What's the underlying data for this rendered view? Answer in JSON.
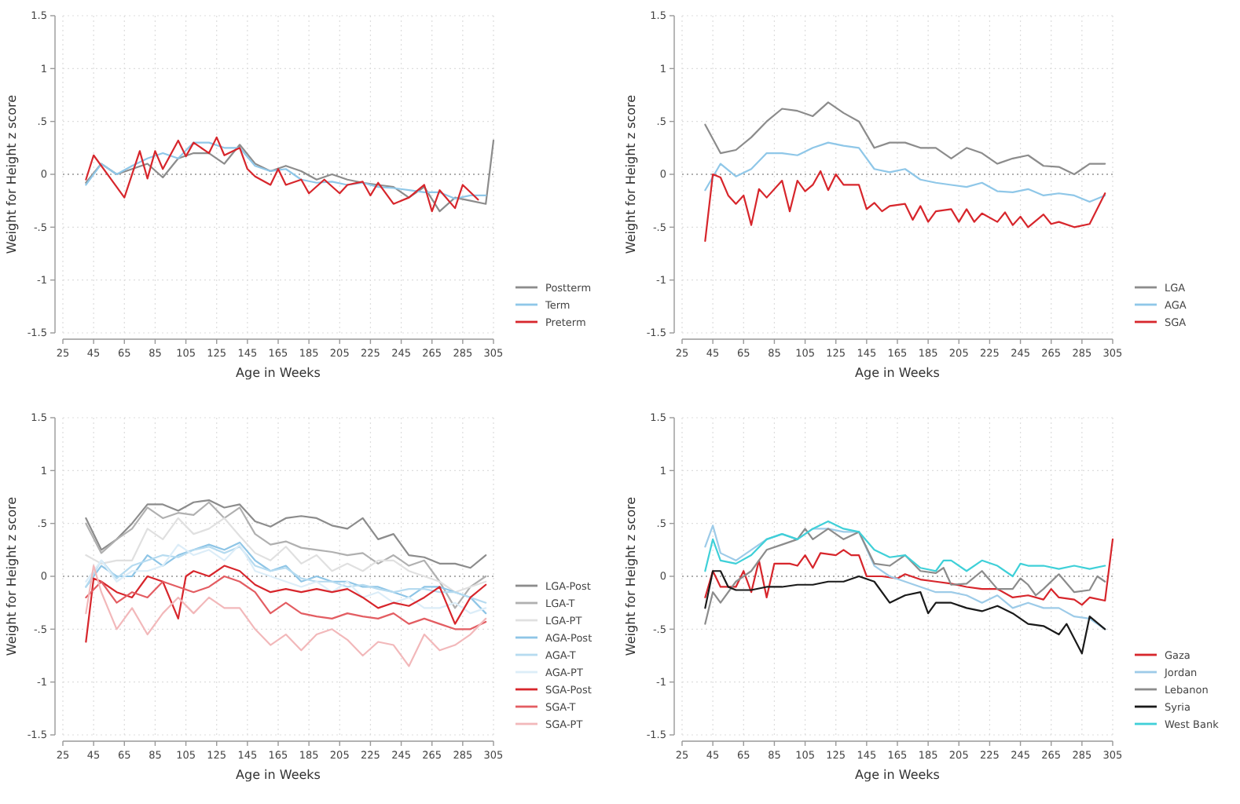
{
  "chart_data": [
    {
      "type": "line",
      "xlabel": "Age in Weeks",
      "ylabel": "Weight for Height z score",
      "xlim": [
        25,
        305
      ],
      "xticks": [
        25,
        45,
        65,
        85,
        105,
        125,
        145,
        165,
        185,
        205,
        225,
        245,
        265,
        285,
        305
      ],
      "ylim": [
        -1.5,
        1.5
      ],
      "yticks": [
        {
          "value": -1.5,
          "label": "-1.5"
        },
        {
          "value": -1,
          "label": "-1"
        },
        {
          "value": -0.5,
          "label": "-.5"
        },
        {
          "value": 0,
          "label": "0"
        },
        {
          "value": 0.5,
          "label": ".5"
        },
        {
          "value": 1,
          "label": "1"
        },
        {
          "value": 1.5,
          "label": "1.5"
        }
      ],
      "grid": true,
      "legend": "right",
      "line_style": "solid",
      "ref_lines": [
        {
          "axis": "y",
          "value": 0,
          "line_style": "dotted",
          "color": "#999999"
        }
      ],
      "series": [
        {
          "name": "Postterm",
          "color": "#8c8c8c",
          "x": [
            40,
            50,
            60,
            70,
            80,
            90,
            100,
            110,
            120,
            130,
            140,
            150,
            160,
            170,
            180,
            190,
            200,
            210,
            220,
            230,
            240,
            250,
            260,
            270,
            280,
            290,
            300,
            305
          ],
          "values": [
            -0.08,
            0.1,
            0,
            0.05,
            0.1,
            -0.03,
            0.15,
            0.2,
            0.2,
            0.1,
            0.28,
            0.1,
            0.03,
            0.08,
            0.03,
            -0.05,
            0,
            -0.05,
            -0.08,
            -0.1,
            -0.12,
            -0.22,
            -0.12,
            -0.35,
            -0.22,
            -0.25,
            -0.28,
            0.32
          ]
        },
        {
          "name": "Term",
          "color": "#8fc7e8",
          "x": [
            40,
            50,
            60,
            70,
            80,
            90,
            100,
            110,
            120,
            130,
            140,
            150,
            160,
            170,
            180,
            190,
            200,
            210,
            220,
            230,
            240,
            250,
            260,
            270,
            280,
            290,
            300
          ],
          "values": [
            -0.1,
            0.1,
            0,
            0.08,
            0.15,
            0.2,
            0.15,
            0.3,
            0.3,
            0.25,
            0.25,
            0.08,
            0.03,
            0.05,
            -0.05,
            -0.08,
            -0.07,
            -0.1,
            -0.08,
            -0.12,
            -0.13,
            -0.15,
            -0.17,
            -0.17,
            -0.23,
            -0.2,
            -0.2
          ]
        },
        {
          "name": "Preterm",
          "color": "#d7262c",
          "x": [
            40,
            45,
            55,
            65,
            75,
            80,
            85,
            90,
            100,
            105,
            110,
            120,
            125,
            130,
            140,
            145,
            150,
            160,
            165,
            170,
            180,
            185,
            195,
            205,
            210,
            220,
            225,
            230,
            240,
            250,
            260,
            265,
            270,
            280,
            285,
            295
          ],
          "values": [
            -0.05,
            0.18,
            -0.02,
            -0.22,
            0.22,
            -0.04,
            0.22,
            0.05,
            0.32,
            0.17,
            0.3,
            0.2,
            0.35,
            0.18,
            0.25,
            0.05,
            -0.02,
            -0.1,
            0.05,
            -0.1,
            -0.05,
            -0.18,
            -0.05,
            -0.18,
            -0.1,
            -0.07,
            -0.2,
            -0.08,
            -0.28,
            -0.22,
            -0.1,
            -0.35,
            -0.15,
            -0.32,
            -0.1,
            -0.24
          ]
        }
      ]
    },
    {
      "type": "line",
      "xlabel": "Age in Weeks",
      "ylabel": "Weight for Height z score",
      "xlim": [
        25,
        305
      ],
      "xticks": [
        25,
        45,
        65,
        85,
        105,
        125,
        145,
        165,
        185,
        205,
        225,
        245,
        265,
        285,
        305
      ],
      "ylim": [
        -1.5,
        1.5
      ],
      "yticks": [
        {
          "value": -1.5,
          "label": "-1.5"
        },
        {
          "value": -1,
          "label": "-1"
        },
        {
          "value": -0.5,
          "label": "-.5"
        },
        {
          "value": 0,
          "label": "0"
        },
        {
          "value": 0.5,
          "label": ".5"
        },
        {
          "value": 1,
          "label": "1"
        },
        {
          "value": 1.5,
          "label": "1.5"
        }
      ],
      "grid": true,
      "legend": "right",
      "line_style": "solid",
      "ref_lines": [
        {
          "axis": "y",
          "value": 0,
          "line_style": "dotted",
          "color": "#999999"
        }
      ],
      "series": [
        {
          "name": "LGA",
          "color": "#8c8c8c",
          "x": [
            40,
            50,
            60,
            70,
            80,
            90,
            100,
            110,
            120,
            130,
            140,
            150,
            160,
            170,
            180,
            190,
            200,
            210,
            220,
            230,
            240,
            250,
            260,
            270,
            280,
            290,
            300
          ],
          "values": [
            0.47,
            0.2,
            0.23,
            0.35,
            0.5,
            0.62,
            0.6,
            0.55,
            0.68,
            0.58,
            0.5,
            0.25,
            0.3,
            0.3,
            0.25,
            0.25,
            0.15,
            0.25,
            0.2,
            0.1,
            0.15,
            0.18,
            0.08,
            0.07,
            0,
            0.1,
            0.1
          ]
        },
        {
          "name": "AGA",
          "color": "#8fc7e8",
          "x": [
            40,
            50,
            60,
            70,
            80,
            90,
            100,
            110,
            120,
            130,
            140,
            150,
            160,
            170,
            180,
            190,
            200,
            210,
            220,
            230,
            240,
            250,
            260,
            270,
            280,
            290,
            300
          ],
          "values": [
            -0.15,
            0.1,
            -0.02,
            0.05,
            0.2,
            0.2,
            0.18,
            0.25,
            0.3,
            0.27,
            0.25,
            0.05,
            0.02,
            0.05,
            -0.05,
            -0.08,
            -0.1,
            -0.12,
            -0.08,
            -0.16,
            -0.17,
            -0.14,
            -0.2,
            -0.18,
            -0.2,
            -0.26,
            -0.2
          ]
        },
        {
          "name": "SGA",
          "color": "#d7262c",
          "x": [
            40,
            45,
            50,
            55,
            60,
            65,
            70,
            75,
            80,
            90,
            95,
            100,
            105,
            110,
            115,
            120,
            125,
            130,
            140,
            145,
            150,
            155,
            160,
            170,
            175,
            180,
            185,
            190,
            200,
            205,
            210,
            215,
            220,
            230,
            235,
            240,
            245,
            250,
            260,
            265,
            270,
            280,
            290,
            300
          ],
          "values": [
            -0.63,
            0,
            -0.03,
            -0.2,
            -0.28,
            -0.2,
            -0.48,
            -0.14,
            -0.22,
            -0.06,
            -0.35,
            -0.06,
            -0.16,
            -0.1,
            0.03,
            -0.15,
            0,
            -0.1,
            -0.1,
            -0.33,
            -0.27,
            -0.35,
            -0.3,
            -0.28,
            -0.43,
            -0.3,
            -0.45,
            -0.35,
            -0.33,
            -0.45,
            -0.33,
            -0.45,
            -0.37,
            -0.45,
            -0.36,
            -0.48,
            -0.4,
            -0.5,
            -0.38,
            -0.47,
            -0.45,
            -0.5,
            -0.47,
            -0.18
          ]
        }
      ]
    },
    {
      "type": "line",
      "xlabel": "Age in Weeks",
      "ylabel": "Weight for Height z score",
      "xlim": [
        25,
        305
      ],
      "xticks": [
        25,
        45,
        65,
        85,
        105,
        125,
        145,
        165,
        185,
        205,
        225,
        245,
        265,
        285,
        305
      ],
      "ylim": [
        -1.5,
        1.5
      ],
      "yticks": [
        {
          "value": -1.5,
          "label": "-1.5"
        },
        {
          "value": -1,
          "label": "-1"
        },
        {
          "value": -0.5,
          "label": "-.5"
        },
        {
          "value": 0,
          "label": "0"
        },
        {
          "value": 0.5,
          "label": ".5"
        },
        {
          "value": 1,
          "label": "1"
        },
        {
          "value": 1.5,
          "label": "1.5"
        }
      ],
      "grid": true,
      "legend": "right",
      "line_style": "solid",
      "ref_lines": [
        {
          "axis": "y",
          "value": 0,
          "line_style": "dotted",
          "color": "#999999"
        }
      ],
      "series": [
        {
          "name": "LGA-Post",
          "color": "#8c8c8c",
          "x": [
            40,
            50,
            60,
            70,
            80,
            90,
            100,
            110,
            120,
            130,
            140,
            150,
            160,
            170,
            180,
            190,
            200,
            210,
            220,
            230,
            240,
            250,
            260,
            270,
            280,
            290,
            300
          ],
          "values": [
            0.55,
            0.25,
            0.35,
            0.5,
            0.68,
            0.68,
            0.62,
            0.7,
            0.72,
            0.65,
            0.68,
            0.52,
            0.47,
            0.55,
            0.57,
            0.55,
            0.48,
            0.45,
            0.55,
            0.35,
            0.4,
            0.2,
            0.18,
            0.12,
            0.12,
            0.08,
            0.2
          ]
        },
        {
          "name": "LGA-T",
          "color": "#b0b0b0",
          "x": [
            40,
            50,
            60,
            70,
            80,
            90,
            100,
            110,
            120,
            130,
            140,
            150,
            160,
            170,
            180,
            190,
            200,
            210,
            220,
            230,
            240,
            250,
            260,
            270,
            280,
            290,
            300
          ],
          "values": [
            0.5,
            0.22,
            0.35,
            0.45,
            0.65,
            0.55,
            0.6,
            0.58,
            0.7,
            0.55,
            0.65,
            0.4,
            0.3,
            0.33,
            0.27,
            0.25,
            0.23,
            0.2,
            0.22,
            0.12,
            0.2,
            0.1,
            0.15,
            -0.05,
            -0.3,
            -0.1,
            0
          ]
        },
        {
          "name": "LGA-PT",
          "color": "#e0e0e0",
          "x": [
            40,
            50,
            60,
            70,
            80,
            90,
            100,
            110,
            120,
            130,
            140,
            150,
            160,
            170,
            180,
            190,
            200,
            210,
            220,
            230,
            240,
            250,
            260,
            270,
            280,
            290,
            300
          ],
          "values": [
            0.2,
            0.12,
            0.15,
            0.15,
            0.45,
            0.35,
            0.55,
            0.4,
            0.45,
            0.55,
            0.38,
            0.22,
            0.15,
            0.28,
            0.12,
            0.2,
            0.05,
            0.12,
            0.05,
            0.15,
            0.15,
            0.05,
            0,
            -0.05,
            -0.15,
            -0.1,
            -0.05
          ]
        },
        {
          "name": "AGA-Post",
          "color": "#8ec5e6",
          "x": [
            40,
            50,
            60,
            70,
            80,
            90,
            100,
            110,
            120,
            130,
            140,
            150,
            160,
            170,
            180,
            190,
            200,
            210,
            220,
            230,
            240,
            250,
            260,
            270,
            280,
            290,
            300
          ],
          "values": [
            -0.1,
            0.1,
            0,
            0,
            0.2,
            0.1,
            0.2,
            0.25,
            0.3,
            0.25,
            0.32,
            0.15,
            0.05,
            0.1,
            -0.05,
            0,
            -0.05,
            -0.05,
            -0.1,
            -0.1,
            -0.15,
            -0.2,
            -0.1,
            -0.1,
            -0.15,
            -0.2,
            -0.35
          ]
        },
        {
          "name": "AGA-T",
          "color": "#b6dbf0",
          "x": [
            40,
            50,
            60,
            70,
            80,
            90,
            100,
            110,
            120,
            130,
            140,
            150,
            160,
            170,
            180,
            190,
            200,
            210,
            220,
            230,
            240,
            250,
            260,
            270,
            280,
            290,
            300
          ],
          "values": [
            -0.1,
            0.15,
            -0.02,
            0.1,
            0.15,
            0.2,
            0.18,
            0.25,
            0.28,
            0.22,
            0.28,
            0.1,
            0.05,
            0.08,
            -0.02,
            -0.05,
            -0.05,
            -0.1,
            -0.08,
            -0.12,
            -0.15,
            -0.12,
            -0.12,
            -0.15,
            -0.15,
            -0.2,
            -0.25
          ]
        },
        {
          "name": "AGA-PT",
          "color": "#dcedf8",
          "x": [
            40,
            50,
            60,
            70,
            80,
            90,
            100,
            110,
            120,
            130,
            140,
            150,
            160,
            170,
            180,
            190,
            200,
            210,
            220,
            230,
            240,
            250,
            260,
            270,
            280,
            290,
            300
          ],
          "values": [
            -0.05,
            0.15,
            -0.05,
            0.05,
            0.05,
            0.1,
            0.3,
            0.2,
            0.25,
            0.15,
            0.3,
            0.05,
            0,
            -0.05,
            -0.1,
            -0.05,
            -0.15,
            -0.05,
            -0.2,
            -0.15,
            -0.25,
            -0.2,
            -0.3,
            -0.3,
            -0.25,
            -0.35,
            -0.3
          ]
        },
        {
          "name": "SGA-Post",
          "color": "#d7262c",
          "x": [
            40,
            45,
            50,
            60,
            70,
            80,
            90,
            100,
            105,
            110,
            120,
            130,
            140,
            150,
            160,
            170,
            180,
            190,
            200,
            210,
            220,
            230,
            240,
            250,
            260,
            270,
            280,
            290,
            300
          ],
          "values": [
            -0.62,
            -0.02,
            -0.05,
            -0.15,
            -0.2,
            0,
            -0.05,
            -0.4,
            0,
            0.05,
            0,
            0.1,
            0.05,
            -0.08,
            -0.15,
            -0.12,
            -0.15,
            -0.12,
            -0.15,
            -0.12,
            -0.2,
            -0.3,
            -0.25,
            -0.28,
            -0.2,
            -0.1,
            -0.45,
            -0.2,
            -0.08
          ]
        },
        {
          "name": "SGA-T",
          "color": "#e35d62",
          "x": [
            40,
            50,
            60,
            70,
            80,
            90,
            100,
            110,
            120,
            130,
            140,
            150,
            160,
            170,
            180,
            190,
            200,
            210,
            220,
            230,
            240,
            250,
            260,
            270,
            280,
            290,
            300
          ],
          "values": [
            -0.2,
            -0.05,
            -0.25,
            -0.15,
            -0.2,
            -0.05,
            -0.1,
            -0.15,
            -0.1,
            0,
            -0.05,
            -0.15,
            -0.35,
            -0.25,
            -0.35,
            -0.38,
            -0.4,
            -0.35,
            -0.38,
            -0.4,
            -0.35,
            -0.45,
            -0.4,
            -0.45,
            -0.5,
            -0.5,
            -0.43
          ]
        },
        {
          "name": "SGA-PT",
          "color": "#f2b8ba",
          "x": [
            40,
            45,
            50,
            60,
            70,
            80,
            90,
            100,
            110,
            120,
            130,
            140,
            150,
            160,
            170,
            180,
            190,
            200,
            210,
            220,
            230,
            240,
            250,
            260,
            270,
            280,
            290,
            300
          ],
          "values": [
            -0.35,
            0.1,
            -0.15,
            -0.5,
            -0.3,
            -0.55,
            -0.35,
            -0.2,
            -0.35,
            -0.2,
            -0.3,
            -0.3,
            -0.5,
            -0.65,
            -0.55,
            -0.7,
            -0.55,
            -0.5,
            -0.6,
            -0.75,
            -0.62,
            -0.65,
            -0.85,
            -0.55,
            -0.7,
            -0.65,
            -0.55,
            -0.4
          ]
        }
      ]
    },
    {
      "type": "line",
      "xlabel": "Age in Weeks",
      "ylabel": "Weight for Height z score",
      "xlim": [
        25,
        305
      ],
      "xticks": [
        25,
        45,
        65,
        85,
        105,
        125,
        145,
        165,
        185,
        205,
        225,
        245,
        265,
        285,
        305
      ],
      "ylim": [
        -1.5,
        1.5
      ],
      "yticks": [
        {
          "value": -1.5,
          "label": "-1.5"
        },
        {
          "value": -1,
          "label": "-1"
        },
        {
          "value": -0.5,
          "label": "-.5"
        },
        {
          "value": 0,
          "label": "0"
        },
        {
          "value": 0.5,
          "label": ".5"
        },
        {
          "value": 1,
          "label": "1"
        },
        {
          "value": 1.5,
          "label": "1.5"
        }
      ],
      "grid": true,
      "legend": "right",
      "line_style": "solid",
      "ref_lines": [
        {
          "axis": "y",
          "value": 0,
          "line_style": "dotted",
          "color": "#999999"
        }
      ],
      "series": [
        {
          "name": "Gaza",
          "color": "#d7262c",
          "x": [
            40,
            45,
            50,
            60,
            65,
            70,
            75,
            80,
            85,
            95,
            100,
            105,
            110,
            115,
            125,
            130,
            135,
            140,
            145,
            155,
            165,
            170,
            180,
            190,
            200,
            210,
            220,
            230,
            240,
            250,
            260,
            265,
            270,
            280,
            285,
            290,
            300,
            305
          ],
          "values": [
            -0.2,
            0.05,
            -0.1,
            -0.1,
            0.05,
            -0.15,
            0.15,
            -0.2,
            0.12,
            0.12,
            0.1,
            0.2,
            0.08,
            0.22,
            0.2,
            0.25,
            0.2,
            0.2,
            0,
            0,
            -0.02,
            0.02,
            -0.03,
            -0.05,
            -0.07,
            -0.1,
            -0.12,
            -0.12,
            -0.2,
            -0.18,
            -0.22,
            -0.12,
            -0.2,
            -0.22,
            -0.27,
            -0.2,
            -0.23,
            0.35
          ]
        },
        {
          "name": "Jordan",
          "color": "#9dcbe8",
          "x": [
            40,
            45,
            50,
            60,
            70,
            80,
            90,
            100,
            110,
            120,
            130,
            140,
            150,
            160,
            170,
            180,
            190,
            200,
            210,
            220,
            230,
            240,
            250,
            260,
            270,
            280,
            290,
            300
          ],
          "values": [
            0.28,
            0.48,
            0.22,
            0.15,
            0.25,
            0.35,
            0.4,
            0.35,
            0.45,
            0.45,
            0.42,
            0.42,
            0.1,
            0,
            -0.05,
            -0.1,
            -0.15,
            -0.15,
            -0.18,
            -0.25,
            -0.18,
            -0.3,
            -0.25,
            -0.3,
            -0.3,
            -0.38,
            -0.4,
            -0.5
          ]
        },
        {
          "name": "Lebanon",
          "color": "#8c8c8c",
          "x": [
            40,
            45,
            50,
            60,
            70,
            80,
            90,
            100,
            105,
            110,
            120,
            130,
            140,
            150,
            160,
            170,
            180,
            190,
            195,
            200,
            210,
            220,
            230,
            240,
            245,
            250,
            255,
            260,
            270,
            280,
            290,
            295,
            300
          ],
          "values": [
            -0.45,
            -0.15,
            -0.25,
            -0.05,
            0.05,
            0.25,
            0.3,
            0.35,
            0.45,
            0.35,
            0.45,
            0.35,
            0.42,
            0.12,
            0.1,
            0.2,
            0.05,
            0.03,
            0.08,
            -0.08,
            -0.07,
            0.05,
            -0.12,
            -0.12,
            -0.02,
            -0.08,
            -0.18,
            -0.12,
            0.02,
            -0.15,
            -0.13,
            0,
            -0.05
          ]
        },
        {
          "name": "Syria",
          "color": "#1a1a1a",
          "x": [
            40,
            45,
            50,
            55,
            60,
            70,
            80,
            90,
            100,
            110,
            120,
            130,
            140,
            150,
            160,
            170,
            180,
            185,
            190,
            200,
            210,
            220,
            230,
            240,
            250,
            260,
            270,
            275,
            285,
            290,
            300
          ],
          "values": [
            -0.3,
            0.05,
            0.05,
            -0.1,
            -0.13,
            -0.13,
            -0.1,
            -0.1,
            -0.08,
            -0.08,
            -0.05,
            -0.05,
            0,
            -0.05,
            -0.25,
            -0.18,
            -0.15,
            -0.35,
            -0.25,
            -0.25,
            -0.3,
            -0.33,
            -0.28,
            -0.35,
            -0.45,
            -0.47,
            -0.55,
            -0.45,
            -0.73,
            -0.38,
            -0.5
          ]
        },
        {
          "name": "West Bank",
          "color": "#3fd0d8",
          "x": [
            40,
            45,
            50,
            60,
            70,
            80,
            90,
            100,
            110,
            120,
            130,
            140,
            150,
            160,
            170,
            180,
            190,
            195,
            200,
            210,
            220,
            230,
            240,
            245,
            250,
            260,
            270,
            280,
            290,
            300
          ],
          "values": [
            0.05,
            0.35,
            0.15,
            0.12,
            0.2,
            0.35,
            0.4,
            0.35,
            0.45,
            0.52,
            0.45,
            0.42,
            0.25,
            0.18,
            0.2,
            0.08,
            0.05,
            0.15,
            0.15,
            0.05,
            0.15,
            0.1,
            0,
            0.12,
            0.1,
            0.1,
            0.07,
            0.1,
            0.07,
            0.1
          ]
        }
      ]
    }
  ]
}
